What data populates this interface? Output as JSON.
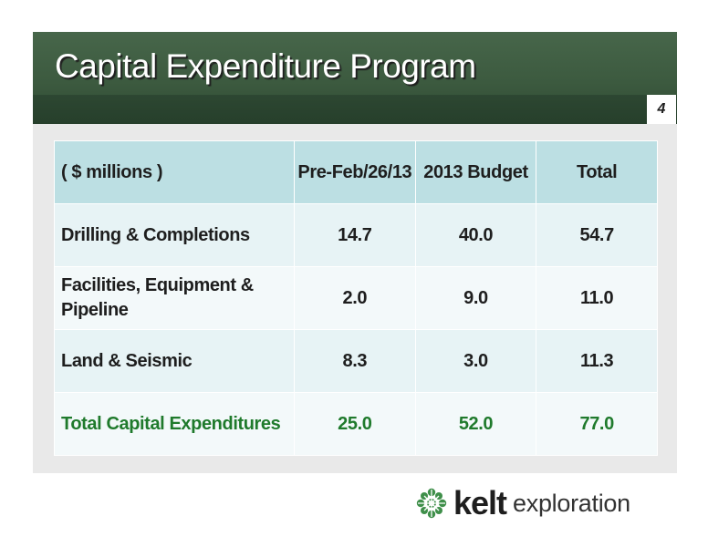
{
  "slide": {
    "title": "Capital Expenditure Program",
    "page_number": "4"
  },
  "table": {
    "headers": [
      "( $ millions )",
      "Pre-Feb/26/13",
      "2013 Budget",
      "Total"
    ],
    "rows": [
      {
        "label": "Drilling & Completions",
        "pre": "14.7",
        "budget": "40.0",
        "total": "54.7"
      },
      {
        "label": "Facilities, Equipment & Pipeline",
        "pre": "2.0",
        "budget": "9.0",
        "total": "11.0"
      },
      {
        "label": "Land & Seismic",
        "pre": "8.3",
        "budget": "3.0",
        "total": "11.3"
      },
      {
        "label": "Total Capital Expenditures",
        "pre": "25.0",
        "budget": "52.0",
        "total": "77.0"
      }
    ]
  },
  "logo": {
    "name": "kelt",
    "suffix": "exploration"
  },
  "colors": {
    "title_bar": "#3c5a3f",
    "header_fill": "#bcdfe3",
    "total_row_text": "#1f7a2c",
    "logo_mark": "#3f8f4a"
  },
  "icons": {
    "logo_mark": "celtic-knot-icon"
  }
}
